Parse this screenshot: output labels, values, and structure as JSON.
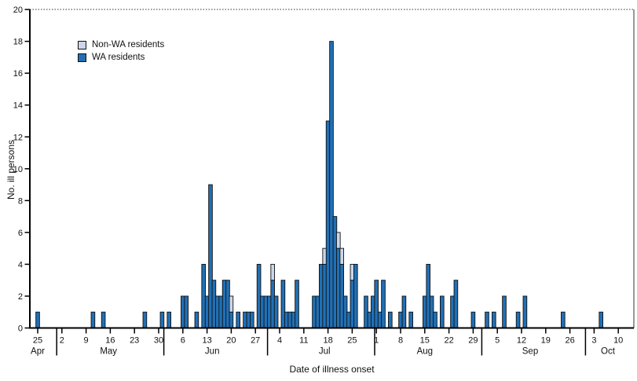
{
  "axes": {
    "x_title": "Date of illness onset",
    "y_title": "No. ill persons"
  },
  "legend": {
    "non_wa": "Non-WA residents",
    "wa": "WA residents"
  },
  "colors": {
    "wa": "#2170b5",
    "non_wa": "#ccd6e8",
    "axis": "#000000",
    "outline": "#111111"
  },
  "chart_data": {
    "type": "bar",
    "stacked": true,
    "xlabel": "Date of illness onset",
    "ylabel": "No. ill persons",
    "ylim": [
      0,
      20
    ],
    "y_ticks": [
      0,
      2,
      4,
      6,
      8,
      10,
      12,
      14,
      16,
      18,
      20
    ],
    "grid": false,
    "legend_position": "upper-left",
    "series_note": "values are daily counts; d = days after Apr 25",
    "x_ticks": [
      {
        "d": 0,
        "label": "25"
      },
      {
        "d": 7,
        "label": "2"
      },
      {
        "d": 14,
        "label": "9"
      },
      {
        "d": 21,
        "label": "16"
      },
      {
        "d": 28,
        "label": "23"
      },
      {
        "d": 35,
        "label": "30"
      },
      {
        "d": 42,
        "label": "6"
      },
      {
        "d": 49,
        "label": "13"
      },
      {
        "d": 56,
        "label": "20"
      },
      {
        "d": 63,
        "label": "27"
      },
      {
        "d": 70,
        "label": "4"
      },
      {
        "d": 77,
        "label": "11"
      },
      {
        "d": 84,
        "label": "18"
      },
      {
        "d": 91,
        "label": "25"
      },
      {
        "d": 98,
        "label": "1"
      },
      {
        "d": 105,
        "label": "8"
      },
      {
        "d": 112,
        "label": "15"
      },
      {
        "d": 119,
        "label": "22"
      },
      {
        "d": 126,
        "label": "29"
      },
      {
        "d": 133,
        "label": "5"
      },
      {
        "d": 140,
        "label": "12"
      },
      {
        "d": 147,
        "label": "19"
      },
      {
        "d": 154,
        "label": "26"
      },
      {
        "d": 161,
        "label": "3"
      },
      {
        "d": 168,
        "label": "10"
      }
    ],
    "months": [
      {
        "d": 0,
        "label": "Apr"
      },
      {
        "d": 20.5,
        "label": "May"
      },
      {
        "d": 50.5,
        "label": "Jun"
      },
      {
        "d": 83,
        "label": "Jul"
      },
      {
        "d": 112,
        "label": "Aug"
      },
      {
        "d": 142.5,
        "label": "Sep"
      },
      {
        "d": 165,
        "label": "Oct"
      }
    ],
    "month_separators_d": [
      5.5,
      36.5,
      66.5,
      97.5,
      128.5,
      158.5
    ],
    "bars": [
      {
        "date": "Apr 25",
        "d": 0,
        "wa": 1,
        "non_wa": 0
      },
      {
        "date": "May 11",
        "d": 16,
        "wa": 1,
        "non_wa": 0
      },
      {
        "date": "May 14",
        "d": 19,
        "wa": 1,
        "non_wa": 0
      },
      {
        "date": "May 26",
        "d": 31,
        "wa": 1,
        "non_wa": 0
      },
      {
        "date": "May 31",
        "d": 36,
        "wa": 1,
        "non_wa": 0
      },
      {
        "date": "Jun 2",
        "d": 38,
        "wa": 1,
        "non_wa": 0
      },
      {
        "date": "Jun 6",
        "d": 42,
        "wa": 2,
        "non_wa": 0
      },
      {
        "date": "Jun 7",
        "d": 43,
        "wa": 2,
        "non_wa": 0
      },
      {
        "date": "Jun 10",
        "d": 46,
        "wa": 1,
        "non_wa": 0
      },
      {
        "date": "Jun 12",
        "d": 48,
        "wa": 4,
        "non_wa": 0
      },
      {
        "date": "Jun 13",
        "d": 49,
        "wa": 2,
        "non_wa": 0
      },
      {
        "date": "Jun 14",
        "d": 50,
        "wa": 9,
        "non_wa": 0
      },
      {
        "date": "Jun 15",
        "d": 51,
        "wa": 3,
        "non_wa": 0
      },
      {
        "date": "Jun 16",
        "d": 52,
        "wa": 2,
        "non_wa": 0
      },
      {
        "date": "Jun 17",
        "d": 53,
        "wa": 2,
        "non_wa": 0
      },
      {
        "date": "Jun 18",
        "d": 54,
        "wa": 3,
        "non_wa": 0
      },
      {
        "date": "Jun 19",
        "d": 55,
        "wa": 3,
        "non_wa": 0
      },
      {
        "date": "Jun 20",
        "d": 56,
        "wa": 1,
        "non_wa": 1
      },
      {
        "date": "Jun 22",
        "d": 58,
        "wa": 1,
        "non_wa": 0
      },
      {
        "date": "Jun 24",
        "d": 60,
        "wa": 1,
        "non_wa": 0
      },
      {
        "date": "Jun 25",
        "d": 61,
        "wa": 1,
        "non_wa": 0
      },
      {
        "date": "Jun 26",
        "d": 62,
        "wa": 1,
        "non_wa": 0
      },
      {
        "date": "Jun 28",
        "d": 64,
        "wa": 4,
        "non_wa": 0
      },
      {
        "date": "Jun 29",
        "d": 65,
        "wa": 2,
        "non_wa": 0
      },
      {
        "date": "Jun 30",
        "d": 66,
        "wa": 2,
        "non_wa": 0
      },
      {
        "date": "Jul 1",
        "d": 67,
        "wa": 2,
        "non_wa": 0
      },
      {
        "date": "Jul 2",
        "d": 68,
        "wa": 3,
        "non_wa": 1
      },
      {
        "date": "Jul 3",
        "d": 69,
        "wa": 2,
        "non_wa": 0
      },
      {
        "date": "Jul 5",
        "d": 71,
        "wa": 3,
        "non_wa": 0
      },
      {
        "date": "Jul 6",
        "d": 72,
        "wa": 1,
        "non_wa": 0
      },
      {
        "date": "Jul 7",
        "d": 73,
        "wa": 1,
        "non_wa": 0
      },
      {
        "date": "Jul 8",
        "d": 74,
        "wa": 1,
        "non_wa": 0
      },
      {
        "date": "Jul 9",
        "d": 75,
        "wa": 3,
        "non_wa": 0
      },
      {
        "date": "Jul 14",
        "d": 80,
        "wa": 2,
        "non_wa": 0
      },
      {
        "date": "Jul 15",
        "d": 81,
        "wa": 2,
        "non_wa": 0
      },
      {
        "date": "Jul 16",
        "d": 82,
        "wa": 4,
        "non_wa": 0
      },
      {
        "date": "Jul 17",
        "d": 83,
        "wa": 4,
        "non_wa": 1
      },
      {
        "date": "Jul 18",
        "d": 84,
        "wa": 13,
        "non_wa": 0
      },
      {
        "date": "Jul 19",
        "d": 85,
        "wa": 18,
        "non_wa": 0
      },
      {
        "date": "Jul 20",
        "d": 86,
        "wa": 7,
        "non_wa": 0
      },
      {
        "date": "Jul 21",
        "d": 87,
        "wa": 5,
        "non_wa": 1
      },
      {
        "date": "Jul 22",
        "d": 88,
        "wa": 4,
        "non_wa": 1
      },
      {
        "date": "Jul 23",
        "d": 89,
        "wa": 2,
        "non_wa": 0
      },
      {
        "date": "Jul 24",
        "d": 90,
        "wa": 1,
        "non_wa": 0
      },
      {
        "date": "Jul 25",
        "d": 91,
        "wa": 3,
        "non_wa": 1
      },
      {
        "date": "Jul 26",
        "d": 92,
        "wa": 4,
        "non_wa": 0
      },
      {
        "date": "Jul 29",
        "d": 95,
        "wa": 2,
        "non_wa": 0
      },
      {
        "date": "Jul 30",
        "d": 96,
        "wa": 1,
        "non_wa": 0
      },
      {
        "date": "Jul 31",
        "d": 97,
        "wa": 2,
        "non_wa": 0
      },
      {
        "date": "Aug 1",
        "d": 98,
        "wa": 3,
        "non_wa": 0
      },
      {
        "date": "Aug 2",
        "d": 99,
        "wa": 1,
        "non_wa": 0
      },
      {
        "date": "Aug 3",
        "d": 100,
        "wa": 3,
        "non_wa": 0
      },
      {
        "date": "Aug 5",
        "d": 102,
        "wa": 1,
        "non_wa": 0
      },
      {
        "date": "Aug 8",
        "d": 105,
        "wa": 1,
        "non_wa": 0
      },
      {
        "date": "Aug 9",
        "d": 106,
        "wa": 2,
        "non_wa": 0
      },
      {
        "date": "Aug 11",
        "d": 108,
        "wa": 1,
        "non_wa": 0
      },
      {
        "date": "Aug 15",
        "d": 112,
        "wa": 2,
        "non_wa": 0
      },
      {
        "date": "Aug 16",
        "d": 113,
        "wa": 4,
        "non_wa": 0
      },
      {
        "date": "Aug 17",
        "d": 114,
        "wa": 2,
        "non_wa": 0
      },
      {
        "date": "Aug 18",
        "d": 115,
        "wa": 1,
        "non_wa": 0
      },
      {
        "date": "Aug 20",
        "d": 117,
        "wa": 2,
        "non_wa": 0
      },
      {
        "date": "Aug 23",
        "d": 120,
        "wa": 2,
        "non_wa": 0
      },
      {
        "date": "Aug 24",
        "d": 121,
        "wa": 3,
        "non_wa": 0
      },
      {
        "date": "Aug 29",
        "d": 126,
        "wa": 1,
        "non_wa": 0
      },
      {
        "date": "Sep 2",
        "d": 130,
        "wa": 1,
        "non_wa": 0
      },
      {
        "date": "Sep 4",
        "d": 132,
        "wa": 1,
        "non_wa": 0
      },
      {
        "date": "Sep 7",
        "d": 135,
        "wa": 2,
        "non_wa": 0
      },
      {
        "date": "Sep 11",
        "d": 139,
        "wa": 1,
        "non_wa": 0
      },
      {
        "date": "Sep 13",
        "d": 141,
        "wa": 2,
        "non_wa": 0
      },
      {
        "date": "Sep 24",
        "d": 152,
        "wa": 1,
        "non_wa": 0
      },
      {
        "date": "Oct 5",
        "d": 163,
        "wa": 1,
        "non_wa": 0
      }
    ]
  }
}
